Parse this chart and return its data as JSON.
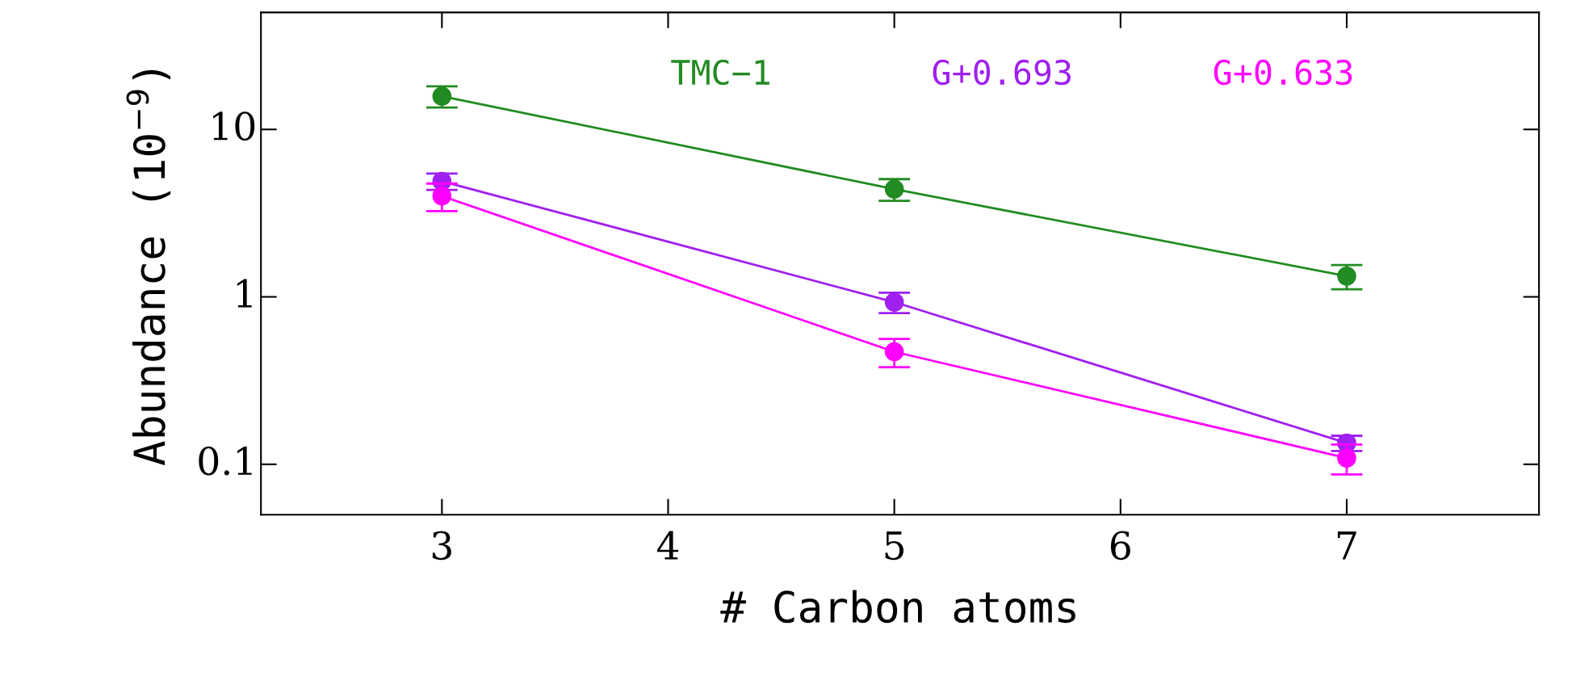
{
  "chart_data": {
    "type": "line",
    "xlabel": "# Carbon atoms",
    "ylabel": "Abundance (10$^{−9}$)",
    "log": "y",
    "xlim": [
      2.2,
      7.85
    ],
    "xticks": [
      3,
      4,
      5,
      6,
      7
    ],
    "ylim": [
      0.05,
      50
    ],
    "yticks": [
      0.1,
      1,
      10
    ],
    "grid": false,
    "marker": "circle",
    "line_style": "solid",
    "x": [
      3,
      5,
      7
    ],
    "series": [
      {
        "name": "TMC−1",
        "color": "#228b22",
        "values": [
          15.8,
          4.4,
          1.33
        ],
        "errors": [
          2.3,
          0.65,
          0.22
        ]
      },
      {
        "name": "G+0.693",
        "color": "#a020f0",
        "values": [
          4.9,
          0.93,
          0.134
        ],
        "errors": [
          0.55,
          0.13,
          0.014
        ]
      },
      {
        "name": "G+0.633",
        "color": "#ff00ff",
        "values": [
          4.0,
          0.47,
          0.109
        ],
        "errors": [
          0.75,
          0.09,
          0.022
        ]
      }
    ]
  }
}
